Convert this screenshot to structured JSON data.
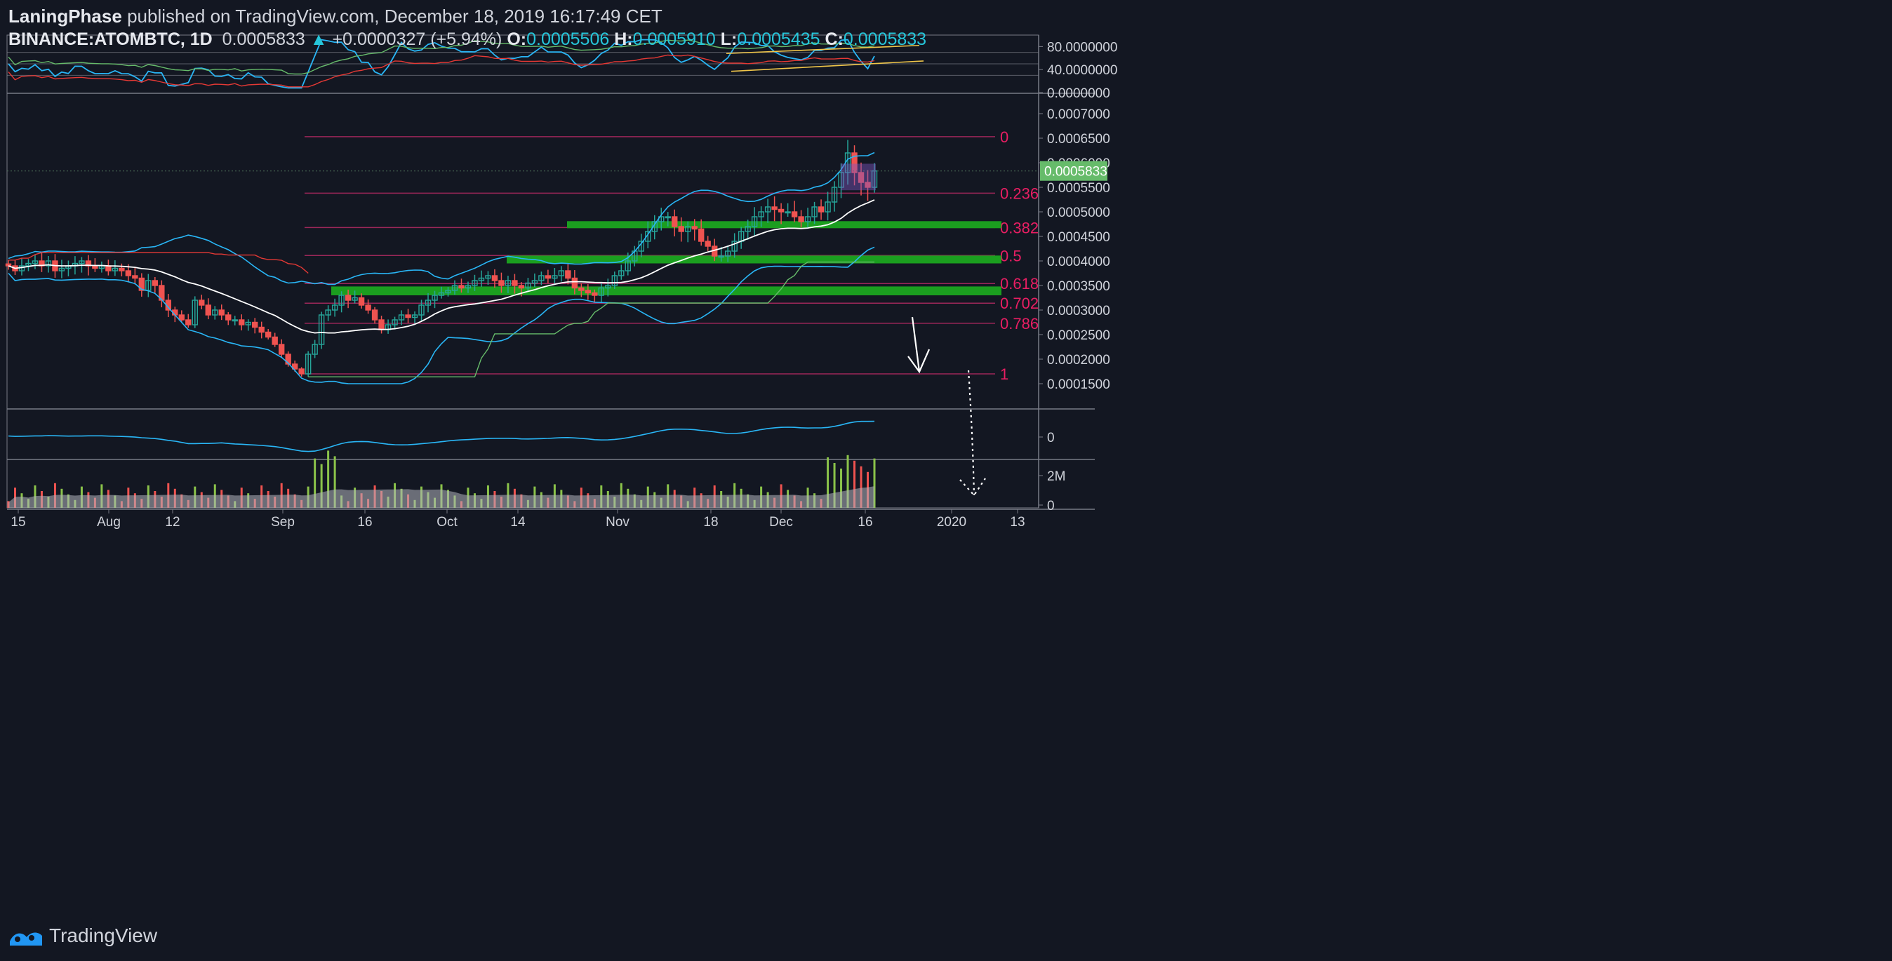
{
  "header": {
    "author": "LaningPhase",
    "published_text": "published on TradingView.com, December 18, 2019 16:17:49 CET",
    "symbol": "BINANCE:ATOMBTC, 1D",
    "last": "0.0005833",
    "change": "+0.0000327 (+5.94%)",
    "open_label": "O:",
    "open": "0.0005506",
    "high_label": "H:",
    "high": "0.0005910",
    "low_label": "L:",
    "low": "0.0005435",
    "close_label": "C:",
    "close": "0.0005833"
  },
  "brand": {
    "name": "TradingView",
    "icon": "tradingview-logo-icon"
  },
  "colors": {
    "background": "#131722",
    "up": "#26a69a",
    "down": "#ef5350",
    "fib_line": "#9c2759",
    "fib_label": "#e91e63",
    "support_zone": "#1b9e1f",
    "bb": "#29b6f6",
    "sma": "#ffffff",
    "ema_red": "#e53935",
    "green_line": "#66bb6a",
    "rsi": "#29b6f6",
    "trendline": "#f0c64a"
  },
  "chart_data": [
    {
      "type": "candlestick",
      "title": "BINANCE:ATOMBTC, 1D",
      "ylim": [
        0.0001,
        0.00074
      ],
      "y_ticks": [
        "0.0007000",
        "0.0006500",
        "0.0006000",
        "0.0005500",
        "0.0005000",
        "0.0004500",
        "0.0004000",
        "0.0003500",
        "0.0003000",
        "0.0002500",
        "0.0002000",
        "0.0001500"
      ],
      "x_ticks": [
        "15",
        "Aug",
        "12",
        "Sep",
        "16",
        "Oct",
        "14",
        "Nov",
        "18",
        "Dec",
        "16",
        "2020",
        "13"
      ],
      "last_price_label": "0.0005833",
      "fib_levels": [
        {
          "label": "0",
          "price": 0.000653
        },
        {
          "label": "0.236",
          "price": 0.000538
        },
        {
          "label": "0.382",
          "price": 0.000468
        },
        {
          "label": "0.5",
          "price": 0.000411
        },
        {
          "label": "0.618",
          "price": 0.000354
        },
        {
          "label": "0.702",
          "price": 0.000314
        },
        {
          "label": "0.786",
          "price": 0.000273
        },
        {
          "label": "1",
          "price": 0.00017
        }
      ],
      "support_zones": [
        {
          "from": 0.00047,
          "to": 0.000481
        },
        {
          "from": 0.000395,
          "to": 0.000411
        },
        {
          "from": 0.00033,
          "to": 0.000348
        }
      ],
      "approx_closes": [
        0.00039,
        0.00038,
        0.00039,
        0.000395,
        0.0004,
        0.00039,
        0.0004,
        0.00038,
        0.000385,
        0.00039,
        0.000395,
        0.0004,
        0.00039,
        0.000385,
        0.00039,
        0.00038,
        0.000385,
        0.00038,
        0.00037,
        0.000365,
        0.00034,
        0.00036,
        0.00035,
        0.00032,
        0.0003,
        0.00029,
        0.00028,
        0.00027,
        0.00032,
        0.00031,
        0.00029,
        0.0003,
        0.00029,
        0.00028,
        0.00028,
        0.00027,
        0.000275,
        0.000265,
        0.000255,
        0.000245,
        0.00023,
        0.00021,
        0.00019,
        0.00018,
        0.00017,
        0.00021,
        0.00023,
        0.00029,
        0.0003,
        0.00031,
        0.00033,
        0.00032,
        0.000325,
        0.00031,
        0.0003,
        0.00028,
        0.00026,
        0.00027,
        0.00028,
        0.00029,
        0.000285,
        0.00029,
        0.00031,
        0.00032,
        0.00033,
        0.000335,
        0.00034,
        0.00035,
        0.000345,
        0.00035,
        0.00036,
        0.000365,
        0.00037,
        0.00036,
        0.00035,
        0.00036,
        0.00035,
        0.000345,
        0.000355,
        0.00036,
        0.00037,
        0.000365,
        0.00037,
        0.00038,
        0.000365,
        0.000345,
        0.00034,
        0.000335,
        0.00033,
        0.000345,
        0.00035,
        0.00037,
        0.00038,
        0.0004,
        0.00042,
        0.00044,
        0.00046,
        0.00048,
        0.00049,
        0.00049,
        0.00047,
        0.00046,
        0.00047,
        0.000465,
        0.00044,
        0.00043,
        0.00041,
        0.00041,
        0.00042,
        0.00044,
        0.00046,
        0.00047,
        0.00049,
        0.0005,
        0.00051,
        0.000505,
        0.0005,
        0.0005,
        0.00049,
        0.00048,
        0.00049,
        0.00051,
        0.0005,
        0.00052,
        0.00055,
        0.00058,
        0.00062,
        0.00058,
        0.00056,
        0.00055,
        0.0005833
      ]
    },
    {
      "type": "line",
      "title": "Oscillator (top pane)",
      "y_ticks": [
        "80.0000000",
        "40.0000000",
        "0.0000000"
      ],
      "ylim": [
        0,
        100
      ]
    },
    {
      "type": "line",
      "title": "Indicator (middle pane)",
      "y_ticks": [
        "0"
      ]
    },
    {
      "type": "bar",
      "title": "Volume",
      "y_ticks": [
        "2M",
        "0"
      ]
    }
  ]
}
